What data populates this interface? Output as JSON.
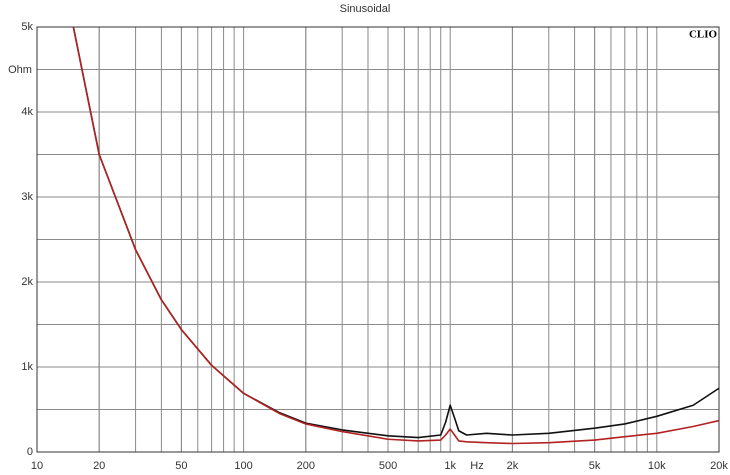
{
  "chart_data": {
    "type": "line",
    "title": "Sinusoidal",
    "x_label": "Hz",
    "y_label": "Ohm",
    "brand": "CLIO",
    "xlog": true,
    "grid": true,
    "xlim": [
      10,
      20000
    ],
    "ylim": [
      0,
      5000
    ],
    "xticks": [
      10,
      20,
      50,
      100,
      200,
      500,
      {
        "value": 1000,
        "label": "1k"
      },
      {
        "value": 2000,
        "label": "2k"
      },
      {
        "value": 5000,
        "label": "5k"
      },
      {
        "value": 10000,
        "label": "10k"
      },
      {
        "value": 20000,
        "label": "20k"
      }
    ],
    "yticks": [
      0,
      {
        "value": 1000,
        "label": "1k"
      },
      {
        "value": 2000,
        "label": "2k"
      },
      {
        "value": 3000,
        "label": "3k"
      },
      {
        "value": 4000,
        "label": "4k"
      },
      {
        "value": 5000,
        "label": "5k"
      }
    ],
    "yminor": [
      500,
      1500,
      2500,
      3500,
      4500
    ],
    "x": [
      15,
      20,
      30,
      40,
      50,
      70,
      100,
      150,
      200,
      300,
      500,
      700,
      900,
      950,
      1000,
      1050,
      1100,
      1200,
      1500,
      2000,
      3000,
      5000,
      7000,
      10000,
      15000,
      20000
    ],
    "series": [
      {
        "color": "#111111",
        "values": [
          5000,
          3500,
          2380,
          1790,
          1440,
          1020,
          690,
          460,
          340,
          260,
          190,
          170,
          200,
          350,
          550,
          400,
          250,
          200,
          220,
          200,
          220,
          280,
          330,
          420,
          550,
          750
        ]
      },
      {
        "color": "#b22222",
        "values": [
          5000,
          3500,
          2380,
          1790,
          1440,
          1020,
          690,
          450,
          330,
          240,
          150,
          130,
          140,
          200,
          270,
          200,
          130,
          120,
          110,
          100,
          110,
          140,
          180,
          220,
          300,
          370
        ]
      }
    ]
  }
}
